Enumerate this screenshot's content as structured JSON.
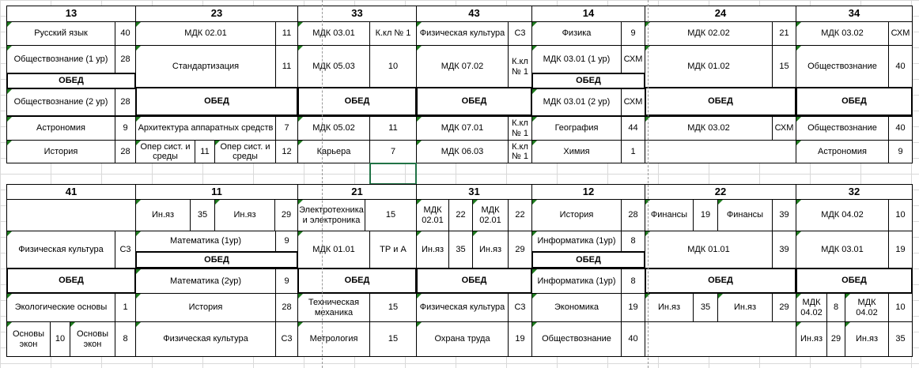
{
  "top": {
    "groups": [
      "13",
      "23",
      "33",
      "43",
      "14",
      "24",
      "34"
    ],
    "cells": {
      "r1": [
        "Русский язык",
        "40",
        "МДК 02.01",
        "11",
        "МДК 03.01",
        "К.кл № 1",
        "Физическая культура",
        "С3",
        "Физика",
        "9",
        "МДК 02.02",
        "21",
        "МДК 03.02",
        "СХМ"
      ],
      "r2": [
        "Обществознание (1 ур)",
        "28",
        "Стандартизация",
        "11",
        "МДК 05.03",
        "10",
        "МДК 07.02",
        "К.кл № 1",
        "МДК 03.01 (1 ур)",
        "СХМ",
        "МДК 01.02",
        "15",
        "Обществознание",
        "40"
      ],
      "lunch": "ОБЕД",
      "r3": [
        "Обществознание (2 ур)",
        "28",
        "МДК 03.01 (2 ур)",
        "СХМ"
      ],
      "r4": [
        "Астрономия",
        "9",
        "Архитектура аппаратных средств",
        "7",
        "МДК 05.02",
        "11",
        "МДК 07.01",
        "К.кл № 1",
        "География",
        "44",
        "МДК 03.02",
        "СХМ",
        "Обществознание",
        "40"
      ],
      "r5": [
        "История",
        "28",
        "Опер сист. и среды",
        "11",
        "Опер сист. и среды",
        "12",
        "Карьера",
        "7",
        "МДК 06.03",
        "К.кл № 1",
        "Химия",
        "1",
        "Астрономия",
        "9"
      ]
    }
  },
  "bottom": {
    "groups": [
      "41",
      "11",
      "21",
      "31",
      "12",
      "22",
      "32"
    ],
    "cells": {
      "r1": [
        "Ин.яз",
        "35",
        "Ин.яз",
        "29",
        "Электротехника и электроника",
        "15",
        "МДК 02.01",
        "22",
        "МДК 02.01",
        "22",
        "История",
        "28",
        "Финансы",
        "19",
        "Финансы",
        "39",
        "МДК 04.02",
        "10"
      ],
      "r2": [
        "Физическая культура",
        "С3",
        "Математика (1ур)",
        "9",
        "МДК 01.01",
        "ТР и А",
        "Ин.яз",
        "35",
        "Ин.яз",
        "29",
        "Информатика (1ур)",
        "8",
        "МДК 01.01",
        "39",
        "МДК 03.01",
        "19"
      ],
      "lunch": "ОБЕД",
      "r3": [
        "Математика (2ур)",
        "9",
        "Информатика (1ур)",
        "8"
      ],
      "r4": [
        "Экологические основы",
        "1",
        "История",
        "28",
        "Техническая механика",
        "15",
        "Физическая культура",
        "С3",
        "Экономика",
        "19",
        "Ин.яз",
        "35",
        "Ин.яз",
        "29",
        "МДК 04.02",
        "8",
        "МДК 04.02",
        "10"
      ],
      "r5": [
        "Основы экон",
        "10",
        "Основы экон",
        "8",
        "Физическая культура",
        "С3",
        "Метрология",
        "15",
        "Охрана труда",
        "19",
        "Обществознание",
        "40",
        "Ин.яз",
        "29",
        "Ин.яз",
        "35"
      ]
    }
  }
}
